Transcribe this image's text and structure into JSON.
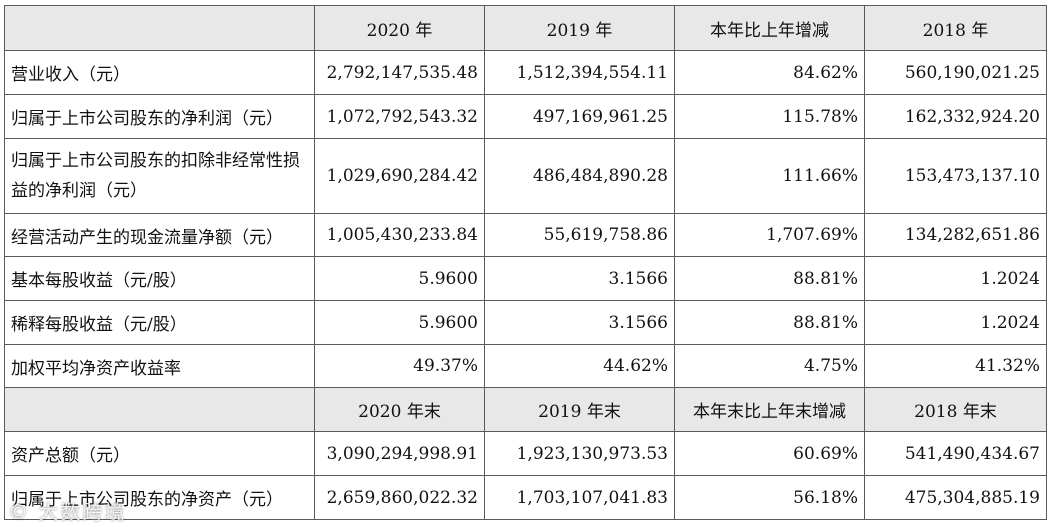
{
  "header_top": {
    "col1": "2020 年",
    "col2": "2019 年",
    "col3": "本年比上年增减",
    "col4": "2018 年"
  },
  "rows_top": [
    {
      "label": "营业收入（元）",
      "v2020": "2,792,147,535.48",
      "v2019": "1,512,394,554.11",
      "change": "84.62%",
      "v2018": "560,190,021.25"
    },
    {
      "label": "归属于上市公司股东的净利润（元）",
      "v2020": "1,072,792,543.32",
      "v2019": "497,169,961.25",
      "change": "115.78%",
      "v2018": "162,332,924.20"
    },
    {
      "label": "归属于上市公司股东的扣除非经常性损益的净利润（元）",
      "v2020": "1,029,690,284.42",
      "v2019": "486,484,890.28",
      "change": "111.66%",
      "v2018": "153,473,137.10"
    },
    {
      "label": "经营活动产生的现金流量净额（元）",
      "v2020": "1,005,430,233.84",
      "v2019": "55,619,758.86",
      "change": "1,707.69%",
      "v2018": "134,282,651.86"
    },
    {
      "label": "基本每股收益（元/股）",
      "v2020": "5.9600",
      "v2019": "3.1566",
      "change": "88.81%",
      "v2018": "1.2024"
    },
    {
      "label": "稀释每股收益（元/股）",
      "v2020": "5.9600",
      "v2019": "3.1566",
      "change": "88.81%",
      "v2018": "1.2024"
    },
    {
      "label": "加权平均净资产收益率",
      "v2020": "49.37%",
      "v2019": "44.62%",
      "change": "4.75%",
      "v2018": "41.32%"
    }
  ],
  "header_bottom": {
    "col1": "2020 年末",
    "col2": "2019 年末",
    "col3": "本年末比上年末增减",
    "col4": "2018 年末"
  },
  "rows_bottom": [
    {
      "label": "资产总额（元）",
      "v2020": "3,090,294,998.91",
      "v2019": "1,923,130,973.53",
      "change": "60.69%",
      "v2018": "541,490,434.67"
    },
    {
      "label": "归属于上市公司股东的净资产（元）",
      "v2020": "2,659,860,022.32",
      "v2019": "1,703,107,041.83",
      "change": "56.18%",
      "v2018": "475,304,885.19"
    }
  ],
  "watermark": "大数跨境"
}
